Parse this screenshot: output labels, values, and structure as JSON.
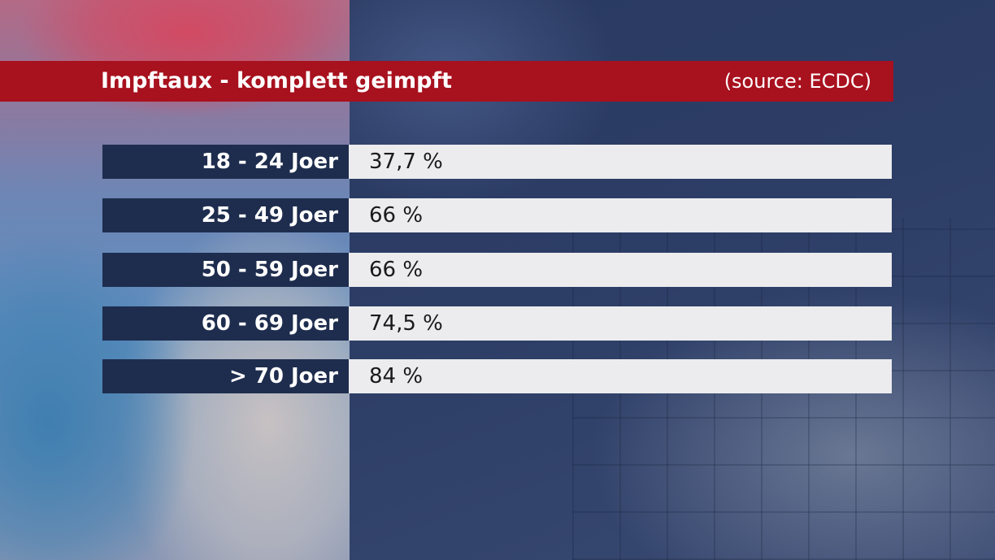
{
  "header": {
    "title": "Impftaux - komplett geimpft",
    "source": "(source: ECDC)"
  },
  "rows": [
    {
      "label": "18 - 24 Joer",
      "value": "37,7 %"
    },
    {
      "label": "25 - 49 Joer",
      "value": "66 %"
    },
    {
      "label": "50 - 59 Joer",
      "value": "66 %"
    },
    {
      "label": "60 - 69 Joer",
      "value": "74,5 %"
    },
    {
      "label": "> 70 Joer",
      "value": "84 %"
    }
  ],
  "colors": {
    "title_bar": "#a8111e",
    "label_bg": "#1e2d4e",
    "value_bg": "#ececee"
  }
}
